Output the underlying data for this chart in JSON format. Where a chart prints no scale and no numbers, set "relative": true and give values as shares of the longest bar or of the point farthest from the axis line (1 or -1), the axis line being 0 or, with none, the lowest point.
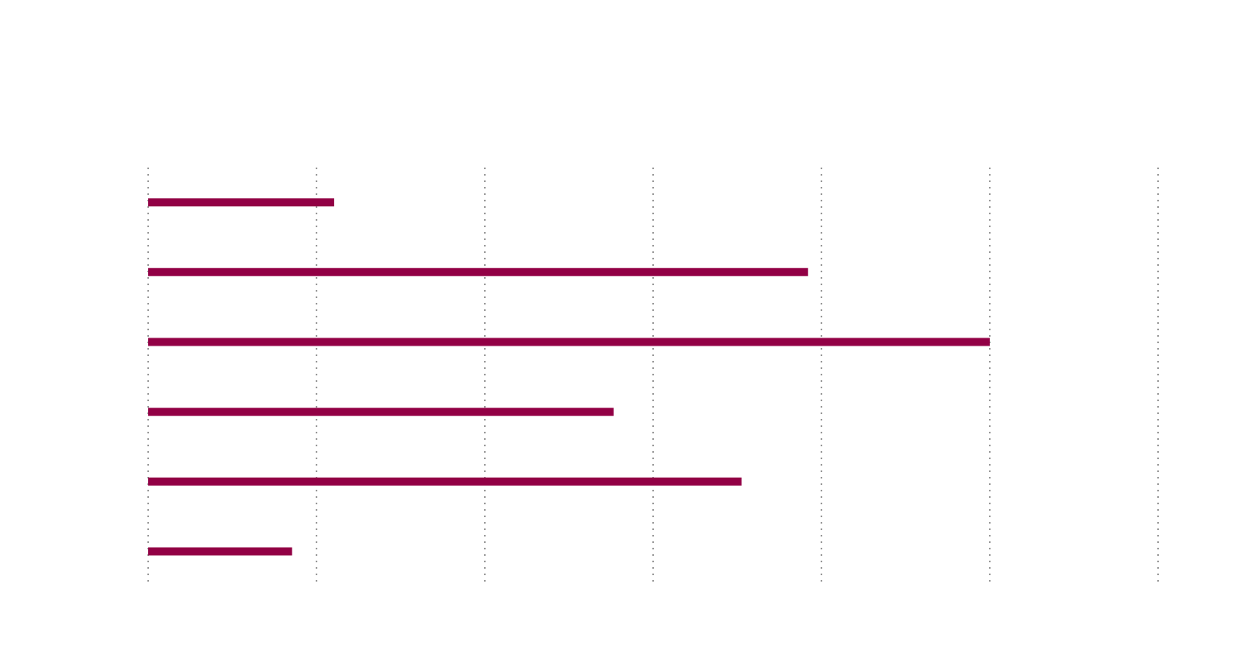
{
  "chart_data": {
    "type": "bar",
    "orientation": "horizontal",
    "relative": true,
    "categories": [
      null,
      null,
      null,
      null,
      null,
      null
    ],
    "values": [
      0.221,
      0.784,
      1,
      0.553,
      0.705,
      0.171
    ],
    "color": "#920045",
    "grid": "x"
  }
}
